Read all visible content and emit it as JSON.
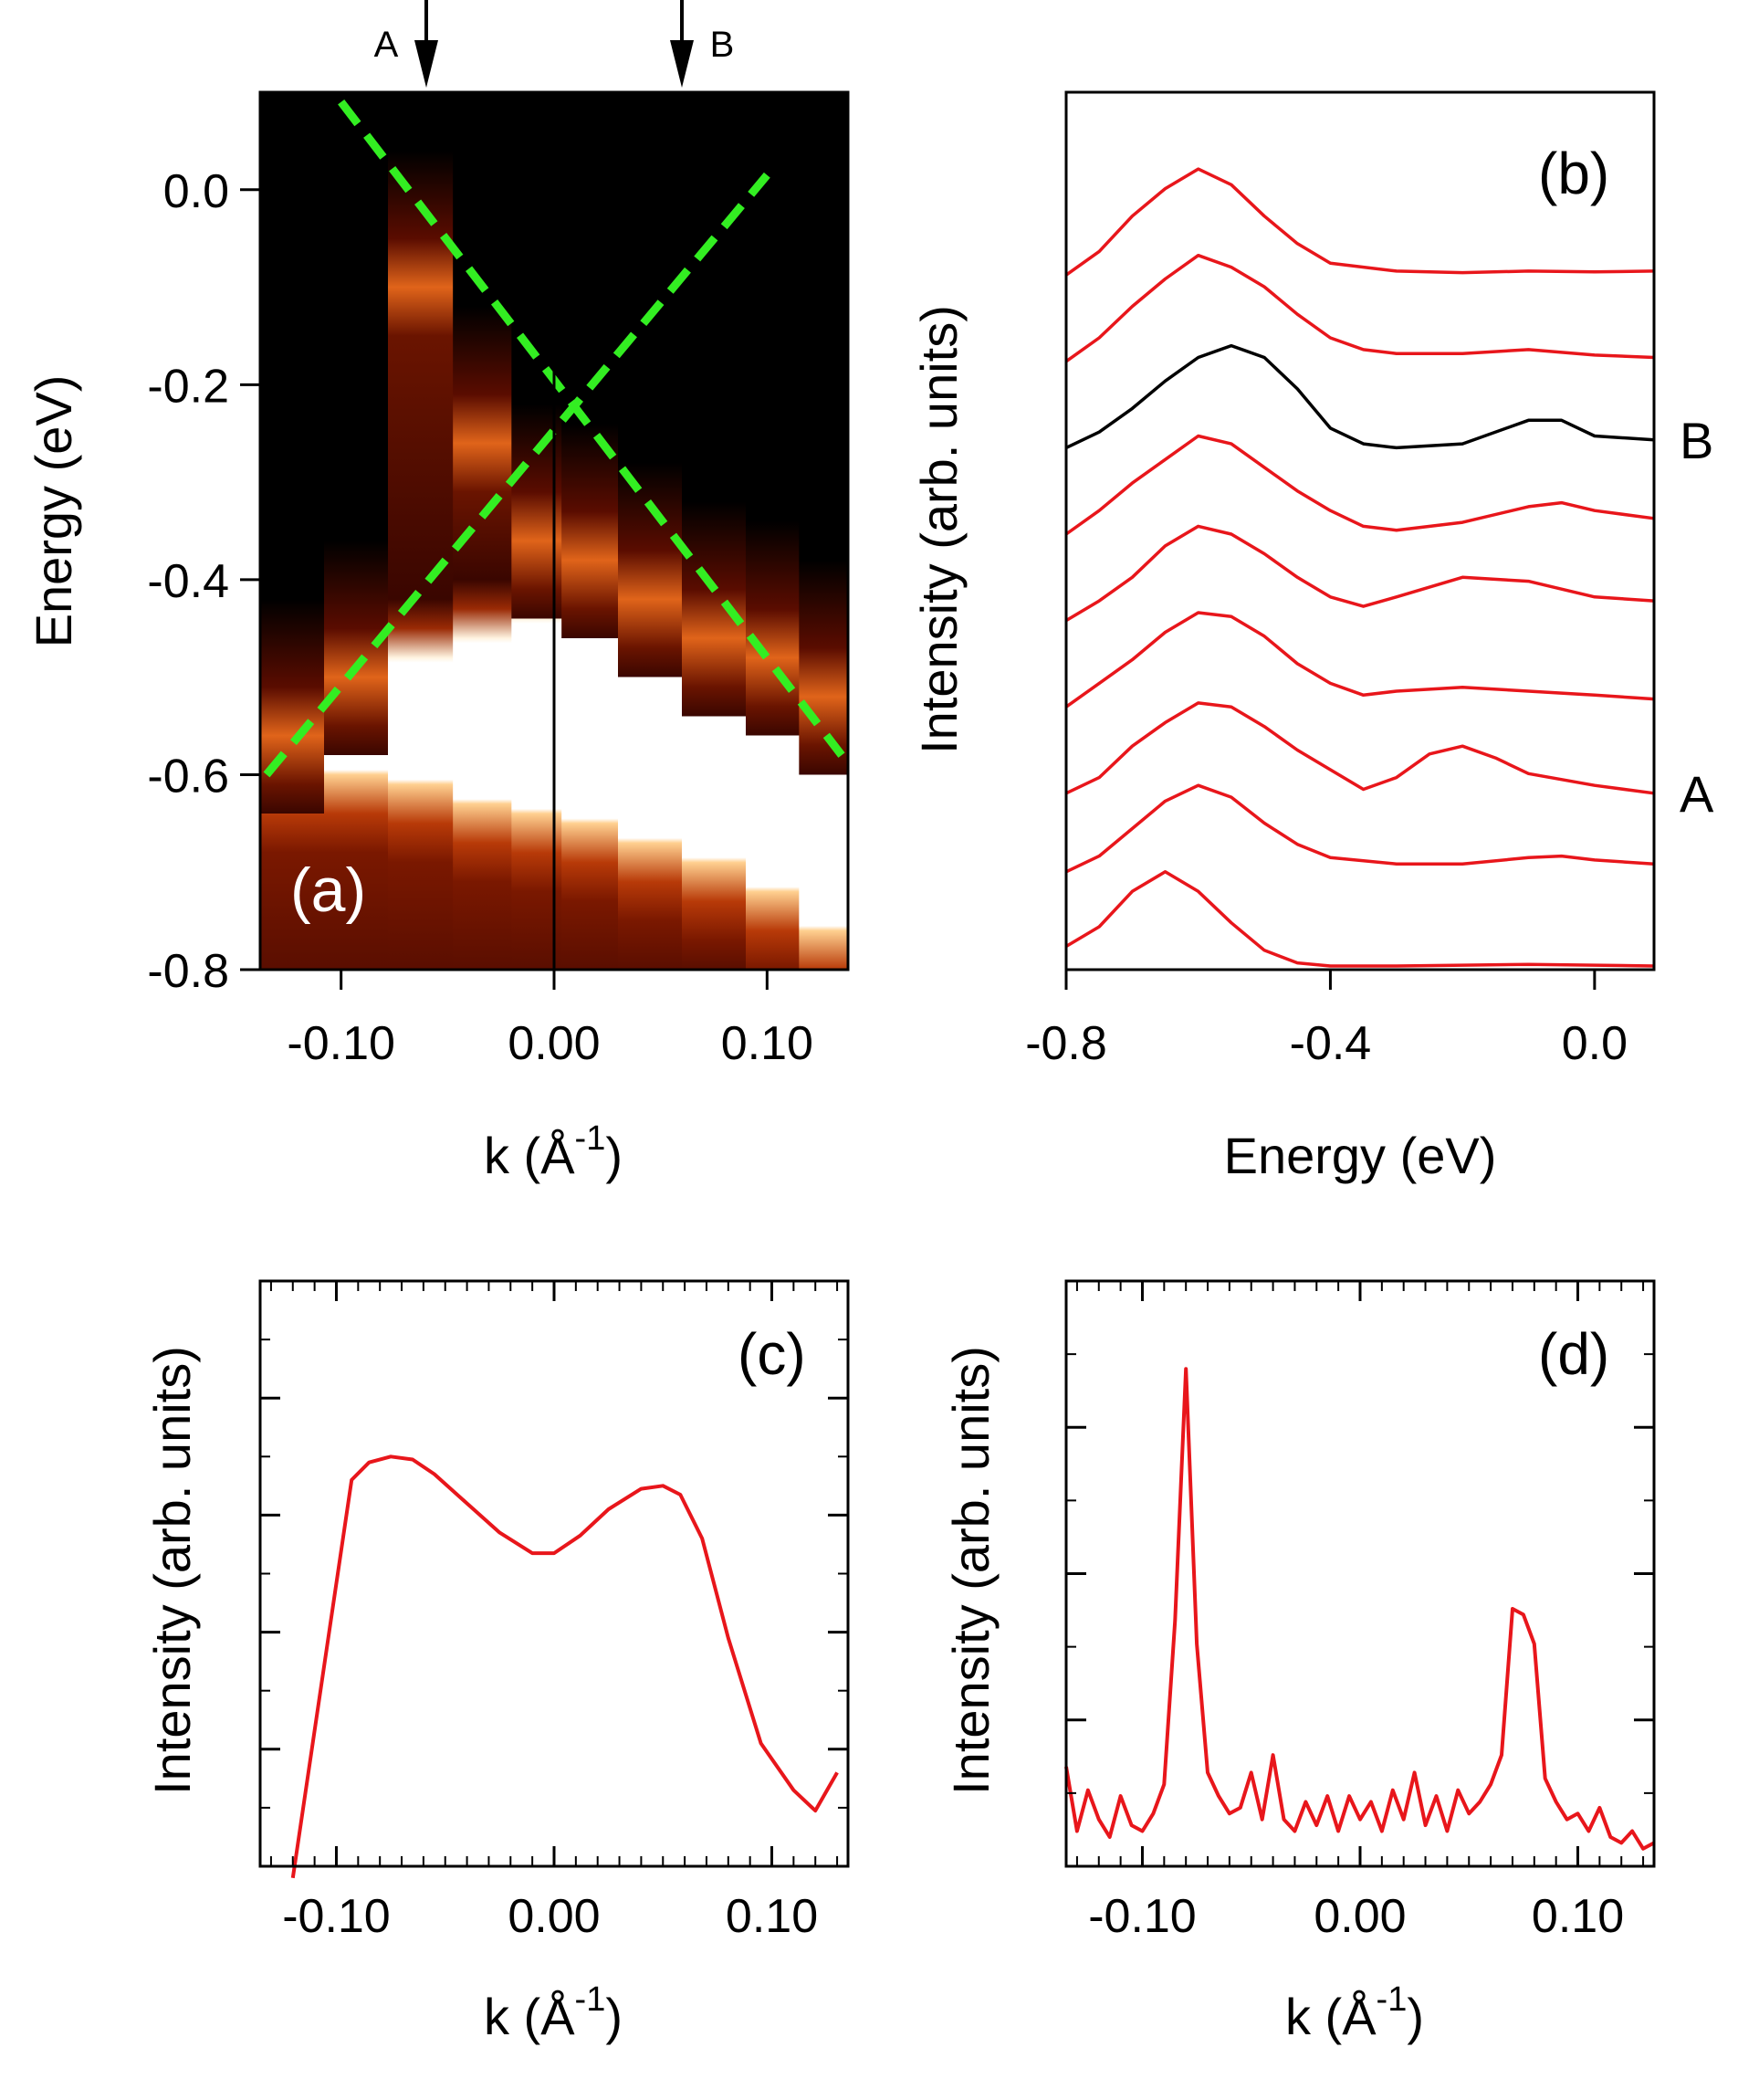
{
  "colors": {
    "red": "#e8161b",
    "black": "#000000",
    "green": "#33ee22"
  },
  "chart_data": [
    {
      "type": "heatmap",
      "panel_label": "(a)",
      "xlabel": "k (Å",
      "xlabel_exp": "-1",
      "xlabel_close": ")",
      "ylabel": "Energy (eV)",
      "xlim": [
        -0.138,
        0.138
      ],
      "ylim": [
        -0.8,
        0.1
      ],
      "xticks": [
        -0.1,
        0.0,
        0.1
      ],
      "xtick_labels": [
        "-0.10",
        "0.00",
        "0.10"
      ],
      "yticks": [
        0.0,
        -0.2,
        -0.4,
        -0.6,
        -0.8
      ],
      "ytick_labels": [
        "0.0",
        "-0.2",
        "-0.4",
        "-0.6",
        "-0.8"
      ],
      "markers": [
        {
          "label": "A",
          "k": -0.06
        },
        {
          "label": "B",
          "k": 0.06
        }
      ],
      "dashed_lines": [
        {
          "points": [
            [
              -0.1,
              0.09
            ],
            [
              0.135,
              -0.58
            ]
          ]
        },
        {
          "points": [
            [
              -0.135,
              -0.6
            ],
            [
              0.1,
              0.015
            ]
          ]
        }
      ],
      "columns": [
        {
          "k": -0.123,
          "peak_e": -0.56,
          "bright_top": -0.53,
          "bright_bottom": -0.6
        },
        {
          "k": -0.093,
          "peak_e": -0.5,
          "bright_top": -0.51,
          "bright_bottom": -0.6
        },
        {
          "k": -0.063,
          "peak_e": -0.1,
          "bright_top": -0.48,
          "bright_bottom": -0.61
        },
        {
          "k": -0.032,
          "peak_e": -0.26,
          "bright_top": -0.46,
          "bright_bottom": -0.63
        },
        {
          "k": -0.008,
          "peak_e": -0.36,
          "bright_top": -0.44,
          "bright_bottom": -0.64
        },
        {
          "k": 0.015,
          "peak_e": -0.38,
          "bright_top": -0.42,
          "bright_bottom": -0.65
        },
        {
          "k": 0.045,
          "peak_e": -0.42,
          "bright_top": -0.43,
          "bright_bottom": -0.67
        },
        {
          "k": 0.075,
          "peak_e": -0.46,
          "bright_top": -0.47,
          "bright_bottom": -0.69
        },
        {
          "k": 0.105,
          "peak_e": -0.48,
          "bright_top": -0.49,
          "bright_bottom": -0.72
        },
        {
          "k": 0.125,
          "peak_e": -0.52,
          "bright_top": -0.52,
          "bright_bottom": -0.76
        }
      ]
    },
    {
      "type": "line",
      "panel_label": "(b)",
      "xlabel": "Energy (eV)",
      "ylabel": "Intensity (arb. units)",
      "xlim": [
        -0.8,
        0.09
      ],
      "xticks": [
        -0.8,
        -0.4,
        0.0
      ],
      "xtick_labels": [
        "-0.8",
        "-0.4",
        "0.0"
      ],
      "series": [
        {
          "color": "red",
          "offset": 0.0,
          "points": [
            [
              -0.8,
              0.25
            ],
            [
              -0.75,
              0.5
            ],
            [
              -0.7,
              0.95
            ],
            [
              -0.65,
              1.2
            ],
            [
              -0.6,
              0.95
            ],
            [
              -0.55,
              0.55
            ],
            [
              -0.5,
              0.2
            ],
            [
              -0.45,
              0.04
            ],
            [
              -0.4,
              0.0
            ],
            [
              -0.3,
              0.0
            ],
            [
              -0.2,
              0.01
            ],
            [
              -0.1,
              0.02
            ],
            [
              0.0,
              0.01
            ],
            [
              0.09,
              0.0
            ]
          ]
        },
        {
          "color": "red",
          "offset": 1.1,
          "points": [
            [
              -0.8,
              0.1
            ],
            [
              -0.75,
              0.3
            ],
            [
              -0.7,
              0.65
            ],
            [
              -0.65,
              1.0
            ],
            [
              -0.6,
              1.2
            ],
            [
              -0.55,
              1.05
            ],
            [
              -0.5,
              0.72
            ],
            [
              -0.45,
              0.45
            ],
            [
              -0.4,
              0.28
            ],
            [
              -0.3,
              0.2
            ],
            [
              -0.2,
              0.2
            ],
            [
              -0.1,
              0.28
            ],
            [
              -0.05,
              0.3
            ],
            [
              0.0,
              0.25
            ],
            [
              0.09,
              0.2
            ]
          ]
        },
        {
          "color": "red",
          "offset": 2.2,
          "points": [
            [
              -0.8,
              0.0
            ],
            [
              -0.75,
              0.2
            ],
            [
              -0.7,
              0.6
            ],
            [
              -0.65,
              0.9
            ],
            [
              -0.6,
              1.15
            ],
            [
              -0.55,
              1.1
            ],
            [
              -0.5,
              0.85
            ],
            [
              -0.45,
              0.55
            ],
            [
              -0.4,
              0.3
            ],
            [
              -0.35,
              0.05
            ],
            [
              -0.3,
              0.2
            ],
            [
              -0.25,
              0.5
            ],
            [
              -0.2,
              0.6
            ],
            [
              -0.15,
              0.45
            ],
            [
              -0.1,
              0.25
            ],
            [
              0.0,
              0.1
            ],
            [
              0.09,
              0.0
            ]
          ]
        },
        {
          "color": "red",
          "offset": 3.3,
          "points": [
            [
              -0.8,
              0.0
            ],
            [
              -0.75,
              0.3
            ],
            [
              -0.7,
              0.6
            ],
            [
              -0.65,
              0.95
            ],
            [
              -0.6,
              1.2
            ],
            [
              -0.55,
              1.15
            ],
            [
              -0.5,
              0.9
            ],
            [
              -0.45,
              0.55
            ],
            [
              -0.4,
              0.3
            ],
            [
              -0.35,
              0.15
            ],
            [
              -0.3,
              0.2
            ],
            [
              -0.2,
              0.25
            ],
            [
              -0.1,
              0.2
            ],
            [
              0.0,
              0.15
            ],
            [
              0.09,
              0.1
            ]
          ]
        },
        {
          "color": "red",
          "offset": 4.4,
          "points": [
            [
              -0.8,
              0.0
            ],
            [
              -0.75,
              0.25
            ],
            [
              -0.7,
              0.55
            ],
            [
              -0.65,
              0.95
            ],
            [
              -0.6,
              1.2
            ],
            [
              -0.55,
              1.1
            ],
            [
              -0.5,
              0.85
            ],
            [
              -0.45,
              0.55
            ],
            [
              -0.4,
              0.3
            ],
            [
              -0.35,
              0.18
            ],
            [
              -0.3,
              0.3
            ],
            [
              -0.2,
              0.55
            ],
            [
              -0.1,
              0.5
            ],
            [
              0.0,
              0.3
            ],
            [
              0.09,
              0.25
            ]
          ]
        },
        {
          "color": "red",
          "offset": 5.5,
          "points": [
            [
              -0.8,
              0.0
            ],
            [
              -0.75,
              0.3
            ],
            [
              -0.7,
              0.65
            ],
            [
              -0.65,
              0.95
            ],
            [
              -0.6,
              1.25
            ],
            [
              -0.55,
              1.15
            ],
            [
              -0.5,
              0.85
            ],
            [
              -0.45,
              0.55
            ],
            [
              -0.4,
              0.3
            ],
            [
              -0.35,
              0.1
            ],
            [
              -0.3,
              0.05
            ],
            [
              -0.2,
              0.15
            ],
            [
              -0.1,
              0.35
            ],
            [
              -0.05,
              0.4
            ],
            [
              0.0,
              0.3
            ],
            [
              0.09,
              0.2
            ]
          ]
        },
        {
          "color": "black",
          "offset": 6.6,
          "points": [
            [
              -0.8,
              0.0
            ],
            [
              -0.75,
              0.2
            ],
            [
              -0.7,
              0.5
            ],
            [
              -0.65,
              0.85
            ],
            [
              -0.6,
              1.15
            ],
            [
              -0.55,
              1.3
            ],
            [
              -0.5,
              1.15
            ],
            [
              -0.45,
              0.75
            ],
            [
              -0.4,
              0.25
            ],
            [
              -0.35,
              0.05
            ],
            [
              -0.3,
              0.0
            ],
            [
              -0.2,
              0.05
            ],
            [
              -0.1,
              0.35
            ],
            [
              -0.05,
              0.35
            ],
            [
              0.0,
              0.15
            ],
            [
              0.09,
              0.1
            ]
          ]
        },
        {
          "color": "red",
          "offset": 7.7,
          "points": [
            [
              -0.8,
              0.0
            ],
            [
              -0.75,
              0.3
            ],
            [
              -0.7,
              0.7
            ],
            [
              -0.65,
              1.05
            ],
            [
              -0.6,
              1.35
            ],
            [
              -0.55,
              1.2
            ],
            [
              -0.5,
              0.95
            ],
            [
              -0.45,
              0.6
            ],
            [
              -0.4,
              0.3
            ],
            [
              -0.35,
              0.15
            ],
            [
              -0.3,
              0.1
            ],
            [
              -0.2,
              0.1
            ],
            [
              -0.1,
              0.15
            ],
            [
              0.0,
              0.08
            ],
            [
              0.09,
              0.05
            ]
          ]
        },
        {
          "color": "red",
          "offset": 8.8,
          "points": [
            [
              -0.8,
              0.0
            ],
            [
              -0.75,
              0.3
            ],
            [
              -0.7,
              0.75
            ],
            [
              -0.65,
              1.1
            ],
            [
              -0.6,
              1.35
            ],
            [
              -0.55,
              1.15
            ],
            [
              -0.5,
              0.75
            ],
            [
              -0.45,
              0.4
            ],
            [
              -0.4,
              0.15
            ],
            [
              -0.3,
              0.05
            ],
            [
              -0.2,
              0.03
            ],
            [
              -0.1,
              0.05
            ],
            [
              0.0,
              0.04
            ],
            [
              0.09,
              0.05
            ]
          ]
        }
      ],
      "curve_labels": [
        {
          "label": "B",
          "series_index": 6
        },
        {
          "label": "A",
          "series_index": 2
        }
      ]
    },
    {
      "type": "line",
      "panel_label": "(c)",
      "xlabel": "k (Å",
      "xlabel_exp": "-1",
      "xlabel_close": ")",
      "ylabel": "Intensity (arb. units)",
      "xlim": [
        -0.135,
        0.135
      ],
      "ylim": [
        0,
        1
      ],
      "xticks": [
        -0.1,
        0.0,
        0.1
      ],
      "xtick_labels": [
        "-0.10",
        "0.00",
        "0.10"
      ],
      "series": [
        {
          "color": "red",
          "x": [
            -0.12,
            -0.093,
            -0.085,
            -0.075,
            -0.065,
            -0.055,
            -0.04,
            -0.025,
            -0.01,
            0.0,
            0.012,
            0.025,
            0.04,
            0.05,
            0.058,
            0.068,
            0.08,
            0.095,
            0.11,
            0.12,
            0.13
          ],
          "y": [
            -0.02,
            0.66,
            0.69,
            0.7,
            0.695,
            0.67,
            0.62,
            0.57,
            0.535,
            0.535,
            0.565,
            0.61,
            0.645,
            0.65,
            0.635,
            0.56,
            0.39,
            0.21,
            0.13,
            0.095,
            0.16
          ]
        }
      ]
    },
    {
      "type": "line",
      "panel_label": "(d)",
      "xlabel": "k (Å",
      "xlabel_exp": "-1",
      "xlabel_close": ")",
      "ylabel": "Intensity (arb. units)",
      "xlim": [
        -0.135,
        0.135
      ],
      "ylim": [
        0,
        1
      ],
      "xticks": [
        -0.1,
        0.0,
        0.1
      ],
      "xtick_labels": [
        "-0.10",
        "0.00",
        "0.10"
      ],
      "series": [
        {
          "color": "red",
          "x": [
            -0.135,
            -0.13,
            -0.125,
            -0.12,
            -0.115,
            -0.11,
            -0.105,
            -0.1,
            -0.095,
            -0.09,
            -0.085,
            -0.08,
            -0.075,
            -0.07,
            -0.065,
            -0.06,
            -0.055,
            -0.05,
            -0.045,
            -0.04,
            -0.035,
            -0.03,
            -0.025,
            -0.02,
            -0.015,
            -0.01,
            -0.005,
            0.0,
            0.005,
            0.01,
            0.015,
            0.02,
            0.025,
            0.03,
            0.035,
            0.04,
            0.045,
            0.05,
            0.055,
            0.06,
            0.065,
            0.07,
            0.075,
            0.08,
            0.085,
            0.09,
            0.095,
            0.1,
            0.105,
            0.11,
            0.115,
            0.12,
            0.125,
            0.13,
            0.135
          ],
          "y": [
            0.17,
            0.06,
            0.13,
            0.08,
            0.05,
            0.12,
            0.07,
            0.06,
            0.09,
            0.14,
            0.42,
            0.85,
            0.38,
            0.16,
            0.12,
            0.09,
            0.1,
            0.16,
            0.08,
            0.19,
            0.08,
            0.06,
            0.11,
            0.07,
            0.12,
            0.06,
            0.12,
            0.08,
            0.11,
            0.06,
            0.13,
            0.08,
            0.16,
            0.07,
            0.12,
            0.06,
            0.13,
            0.09,
            0.11,
            0.14,
            0.19,
            0.44,
            0.43,
            0.38,
            0.15,
            0.11,
            0.08,
            0.09,
            0.06,
            0.1,
            0.05,
            0.04,
            0.06,
            0.03,
            0.04
          ]
        }
      ]
    }
  ]
}
